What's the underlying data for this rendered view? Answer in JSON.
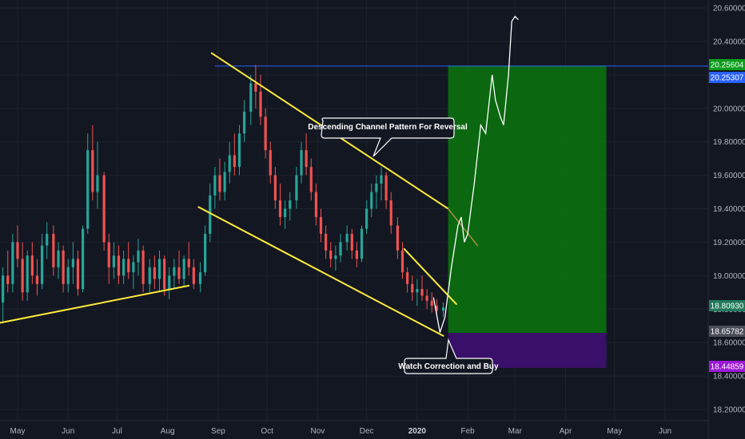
{
  "chart_data": {
    "type": "candlestick",
    "y_ticks": [
      "20.60000",
      "20.40000",
      "20.20000",
      "20.00000",
      "19.80000",
      "19.60000",
      "19.40000",
      "19.20000",
      "19.00000",
      "18.80000",
      "18.60000",
      "18.40000",
      "18.20000"
    ],
    "x_ticks": [
      "May",
      "Jun",
      "Jul",
      "Aug",
      "Sep",
      "Oct",
      "Nov",
      "Dec",
      "2020",
      "Feb",
      "Mar",
      "Apr",
      "May",
      "Jun"
    ],
    "ylim": [
      18.12,
      20.7
    ],
    "price_labels": {
      "target_top": "20.25604",
      "target_line": "20.25307",
      "current": "18.80930",
      "entry": "18.65782",
      "stop": "18.44859"
    },
    "annotations": {
      "channel": "Descending Channel Pattern For Reversal",
      "buy": "Watch Correction and Buy"
    },
    "position": {
      "entry": 18.6578,
      "target": 20.256,
      "stop": 18.4486,
      "start": "2020-01-20",
      "end": "2020-04-26"
    },
    "candles": [
      {
        "o": 18.84,
        "h": 19.05,
        "l": 18.72,
        "c": 19.0
      },
      {
        "o": 19.0,
        "h": 19.15,
        "l": 18.9,
        "c": 18.95
      },
      {
        "o": 18.95,
        "h": 19.25,
        "l": 18.9,
        "c": 19.2
      },
      {
        "o": 19.2,
        "h": 19.3,
        "l": 19.05,
        "c": 19.1
      },
      {
        "o": 19.1,
        "h": 19.2,
        "l": 18.85,
        "c": 18.9
      },
      {
        "o": 18.9,
        "h": 19.15,
        "l": 18.85,
        "c": 19.12
      },
      {
        "o": 19.12,
        "h": 19.2,
        "l": 18.95,
        "c": 19.0
      },
      {
        "o": 19.0,
        "h": 19.1,
        "l": 18.88,
        "c": 18.95
      },
      {
        "o": 18.95,
        "h": 19.25,
        "l": 18.92,
        "c": 19.18
      },
      {
        "o": 19.18,
        "h": 19.32,
        "l": 19.1,
        "c": 19.25
      },
      {
        "o": 19.25,
        "h": 19.3,
        "l": 19.0,
        "c": 19.05
      },
      {
        "o": 19.05,
        "h": 19.2,
        "l": 18.98,
        "c": 19.15
      },
      {
        "o": 19.15,
        "h": 19.18,
        "l": 18.9,
        "c": 18.95
      },
      {
        "o": 18.95,
        "h": 19.1,
        "l": 18.9,
        "c": 19.05
      },
      {
        "o": 19.05,
        "h": 19.2,
        "l": 18.95,
        "c": 19.1
      },
      {
        "o": 19.1,
        "h": 19.15,
        "l": 18.88,
        "c": 18.92
      },
      {
        "o": 18.92,
        "h": 19.3,
        "l": 18.9,
        "c": 19.28
      },
      {
        "o": 19.28,
        "h": 19.85,
        "l": 19.25,
        "c": 19.75
      },
      {
        "o": 19.75,
        "h": 19.9,
        "l": 19.45,
        "c": 19.5
      },
      {
        "o": 19.5,
        "h": 19.8,
        "l": 19.4,
        "c": 19.6
      },
      {
        "o": 19.6,
        "h": 19.62,
        "l": 19.15,
        "c": 19.2
      },
      {
        "o": 19.2,
        "h": 19.25,
        "l": 18.95,
        "c": 19.05
      },
      {
        "o": 19.05,
        "h": 19.2,
        "l": 18.98,
        "c": 19.12
      },
      {
        "o": 19.12,
        "h": 19.18,
        "l": 18.95,
        "c": 19.0
      },
      {
        "o": 19.0,
        "h": 19.15,
        "l": 18.95,
        "c": 19.1
      },
      {
        "o": 19.1,
        "h": 19.2,
        "l": 18.98,
        "c": 19.02
      },
      {
        "o": 19.02,
        "h": 19.12,
        "l": 18.92,
        "c": 19.08
      },
      {
        "o": 19.08,
        "h": 19.22,
        "l": 19.0,
        "c": 19.15
      },
      {
        "o": 19.15,
        "h": 19.18,
        "l": 18.9,
        "c": 18.95
      },
      {
        "o": 18.95,
        "h": 19.1,
        "l": 18.9,
        "c": 19.05
      },
      {
        "o": 19.05,
        "h": 19.12,
        "l": 18.92,
        "c": 18.98
      },
      {
        "o": 18.98,
        "h": 19.15,
        "l": 18.9,
        "c": 19.1
      },
      {
        "o": 19.1,
        "h": 19.12,
        "l": 18.88,
        "c": 18.92
      },
      {
        "o": 18.92,
        "h": 19.05,
        "l": 18.86,
        "c": 19.0
      },
      {
        "o": 19.0,
        "h": 19.1,
        "l": 18.92,
        "c": 19.05
      },
      {
        "o": 19.05,
        "h": 19.15,
        "l": 18.95,
        "c": 18.98
      },
      {
        "o": 18.98,
        "h": 19.12,
        "l": 18.93,
        "c": 19.1
      },
      {
        "o": 19.1,
        "h": 19.2,
        "l": 19.0,
        "c": 19.05
      },
      {
        "o": 19.05,
        "h": 19.1,
        "l": 18.92,
        "c": 18.95
      },
      {
        "o": 18.95,
        "h": 19.08,
        "l": 18.9,
        "c": 19.02
      },
      {
        "o": 19.02,
        "h": 19.3,
        "l": 19.0,
        "c": 19.25
      },
      {
        "o": 19.25,
        "h": 19.55,
        "l": 19.2,
        "c": 19.48
      },
      {
        "o": 19.48,
        "h": 19.65,
        "l": 19.4,
        "c": 19.6
      },
      {
        "o": 19.6,
        "h": 19.7,
        "l": 19.45,
        "c": 19.5
      },
      {
        "o": 19.5,
        "h": 19.68,
        "l": 19.45,
        "c": 19.62
      },
      {
        "o": 19.62,
        "h": 19.8,
        "l": 19.55,
        "c": 19.72
      },
      {
        "o": 19.72,
        "h": 19.85,
        "l": 19.6,
        "c": 19.65
      },
      {
        "o": 19.65,
        "h": 19.9,
        "l": 19.6,
        "c": 19.85
      },
      {
        "o": 19.85,
        "h": 20.05,
        "l": 19.8,
        "c": 19.98
      },
      {
        "o": 19.98,
        "h": 20.2,
        "l": 19.9,
        "c": 20.15
      },
      {
        "o": 20.15,
        "h": 20.26,
        "l": 20.0,
        "c": 20.1
      },
      {
        "o": 20.1,
        "h": 20.2,
        "l": 19.9,
        "c": 19.95
      },
      {
        "o": 19.95,
        "h": 20.0,
        "l": 19.7,
        "c": 19.75
      },
      {
        "o": 19.75,
        "h": 19.8,
        "l": 19.55,
        "c": 19.6
      },
      {
        "o": 19.6,
        "h": 19.65,
        "l": 19.4,
        "c": 19.45
      },
      {
        "o": 19.45,
        "h": 19.55,
        "l": 19.3,
        "c": 19.35
      },
      {
        "o": 19.35,
        "h": 19.45,
        "l": 19.28,
        "c": 19.4
      },
      {
        "o": 19.4,
        "h": 19.5,
        "l": 19.33,
        "c": 19.45
      },
      {
        "o": 19.45,
        "h": 19.65,
        "l": 19.4,
        "c": 19.6
      },
      {
        "o": 19.6,
        "h": 19.8,
        "l": 19.55,
        "c": 19.75
      },
      {
        "o": 19.75,
        "h": 19.85,
        "l": 19.6,
        "c": 19.65
      },
      {
        "o": 19.65,
        "h": 19.7,
        "l": 19.45,
        "c": 19.5
      },
      {
        "o": 19.5,
        "h": 19.55,
        "l": 19.3,
        "c": 19.35
      },
      {
        "o": 19.35,
        "h": 19.4,
        "l": 19.2,
        "c": 19.25
      },
      {
        "o": 19.25,
        "h": 19.3,
        "l": 19.1,
        "c": 19.15
      },
      {
        "o": 19.15,
        "h": 19.2,
        "l": 19.05,
        "c": 19.1
      },
      {
        "o": 19.1,
        "h": 19.18,
        "l": 19.03,
        "c": 19.12
      },
      {
        "o": 19.12,
        "h": 19.25,
        "l": 19.08,
        "c": 19.2
      },
      {
        "o": 19.2,
        "h": 19.3,
        "l": 19.15,
        "c": 19.25
      },
      {
        "o": 19.25,
        "h": 19.28,
        "l": 19.1,
        "c": 19.15
      },
      {
        "o": 19.15,
        "h": 19.2,
        "l": 19.05,
        "c": 19.1
      },
      {
        "o": 19.1,
        "h": 19.3,
        "l": 19.08,
        "c": 19.28
      },
      {
        "o": 19.28,
        "h": 19.45,
        "l": 19.25,
        "c": 19.4
      },
      {
        "o": 19.4,
        "h": 19.55,
        "l": 19.35,
        "c": 19.5
      },
      {
        "o": 19.5,
        "h": 19.6,
        "l": 19.4,
        "c": 19.55
      },
      {
        "o": 19.55,
        "h": 19.65,
        "l": 19.45,
        "c": 19.6
      },
      {
        "o": 19.6,
        "h": 19.62,
        "l": 19.4,
        "c": 19.45
      },
      {
        "o": 19.45,
        "h": 19.5,
        "l": 19.25,
        "c": 19.3
      },
      {
        "o": 19.3,
        "h": 19.35,
        "l": 19.1,
        "c": 19.15
      },
      {
        "o": 19.15,
        "h": 19.2,
        "l": 18.98,
        "c": 19.02
      },
      {
        "o": 19.02,
        "h": 19.05,
        "l": 18.9,
        "c": 18.95
      },
      {
        "o": 18.95,
        "h": 19.0,
        "l": 18.85,
        "c": 18.9
      },
      {
        "o": 18.9,
        "h": 18.98,
        "l": 18.82,
        "c": 18.92
      },
      {
        "o": 18.92,
        "h": 19.0,
        "l": 18.85,
        "c": 18.88
      },
      {
        "o": 18.88,
        "h": 18.92,
        "l": 18.8,
        "c": 18.85
      },
      {
        "o": 18.85,
        "h": 18.9,
        "l": 18.78,
        "c": 18.82
      },
      {
        "o": 18.82,
        "h": 18.86,
        "l": 18.76,
        "c": 18.79
      },
      {
        "o": 18.79,
        "h": 18.84,
        "l": 18.75,
        "c": 18.81
      }
    ]
  },
  "axis": {
    "dates": [
      "2019-04-22",
      "2020-06-14"
    ],
    "y_zoom": ""
  }
}
